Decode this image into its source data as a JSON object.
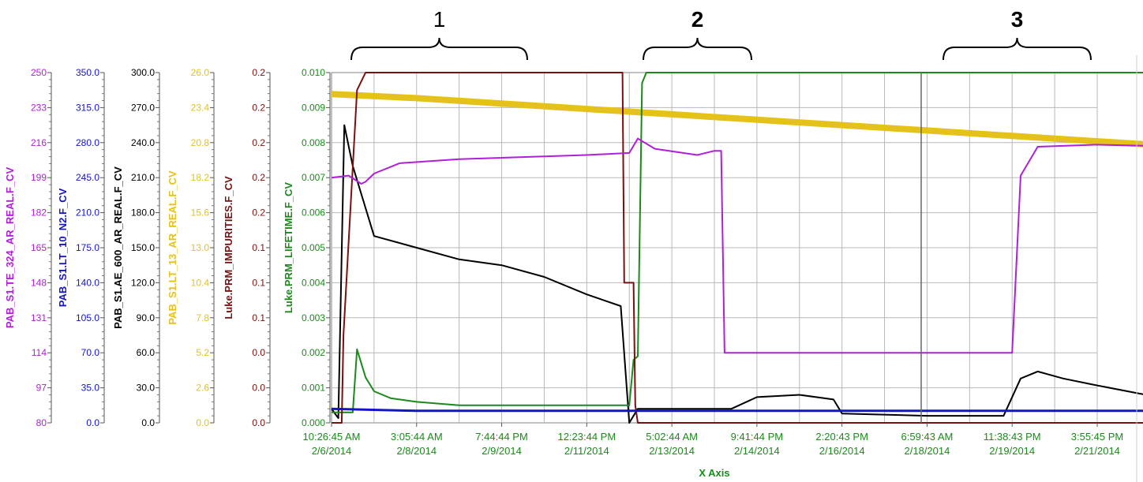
{
  "colors": {
    "magenta": "#b01fd8",
    "blue": "#1414c8",
    "black": "#000000",
    "gold": "#e5c21a",
    "maroon": "#7a1010",
    "green": "#1a8a1a",
    "grid": "#b8b8b8"
  },
  "annotations": [
    {
      "label": "1",
      "bold": false
    },
    {
      "label": "2",
      "bold": true
    },
    {
      "label": "3",
      "bold": true
    }
  ],
  "chart_data": {
    "type": "line",
    "title": "",
    "xlabel": "X Axis",
    "grid": true,
    "x_ticks": [
      {
        "time": "10:26:45 AM",
        "date": "2/6/2014"
      },
      {
        "time": "3:05:44 AM",
        "date": "2/8/2014"
      },
      {
        "time": "7:44:44 PM",
        "date": "2/9/2014"
      },
      {
        "time": "12:23:44 PM",
        "date": "2/11/2014"
      },
      {
        "time": "5:02:44 AM",
        "date": "2/13/2014"
      },
      {
        "time": "9:41:44 PM",
        "date": "2/14/2014"
      },
      {
        "time": "2:20:43 PM",
        "date": "2/16/2014"
      },
      {
        "time": "6:59:43 AM",
        "date": "2/18/2014"
      },
      {
        "time": "11:38:43 PM",
        "date": "2/19/2014"
      },
      {
        "time": "3:55:45 PM",
        "date": "2/21/2014"
      }
    ],
    "axes": [
      {
        "label": "PAB_S1.TE_324_AR_REAL.F_CV",
        "color": "#b01fd8",
        "ticks": [
          "250",
          "233",
          "216",
          "199",
          "182",
          "165",
          "148",
          "131",
          "114",
          "97",
          "80"
        ],
        "ylim": [
          80,
          250
        ]
      },
      {
        "label": "PAB_S1.LT_10_N2.F_CV",
        "color": "#1414c8",
        "ticks": [
          "350.0",
          "315.0",
          "280.0",
          "245.0",
          "210.0",
          "175.0",
          "140.0",
          "105.0",
          "70.0",
          "35.0",
          "0.0"
        ],
        "ylim": [
          0,
          350
        ]
      },
      {
        "label": "PAB_S1.AE_600_AR_REAL.F_CV",
        "color": "#000000",
        "ticks": [
          "300.0",
          "270.0",
          "240.0",
          "210.0",
          "180.0",
          "150.0",
          "120.0",
          "90.0",
          "60.0",
          "30.0",
          "0.0"
        ],
        "ylim": [
          0,
          300
        ]
      },
      {
        "label": "PAB_S1.LT_13_AR_REAL.F_CV",
        "color": "#e5c21a",
        "ticks": [
          "26.0",
          "23.4",
          "20.8",
          "18.2",
          "15.6",
          "13.0",
          "10.4",
          "7.8",
          "5.2",
          "2.6",
          "0.0"
        ],
        "ylim": [
          0,
          26
        ]
      },
      {
        "label": "Luke.PRM_IMPURITIES.F_CV",
        "color": "#7a1010",
        "ticks": [
          "0.2",
          "0.2",
          "0.2",
          "0.2",
          "0.2",
          "0.1",
          "0.1",
          "0.1",
          "0.0",
          "0.0",
          "0.0"
        ],
        "ylim": [
          0,
          0.2
        ]
      },
      {
        "label": "Luke.PRM_LIFETIME.F_CV",
        "color": "#1a8a1a",
        "ticks": [
          "0.010",
          "0.009",
          "0.008",
          "0.007",
          "0.006",
          "0.005",
          "0.004",
          "0.003",
          "0.002",
          "0.001",
          "0.000"
        ],
        "ylim": [
          0,
          0.01
        ]
      }
    ],
    "series": [
      {
        "axis": 0,
        "color": "#b01fd8",
        "x": [
          0,
          0.2,
          0.35,
          0.4,
          0.5,
          0.8,
          1.5,
          3.0,
          3.5,
          3.6,
          3.8,
          4.3,
          4.5,
          4.58,
          4.62,
          7.5,
          8.0,
          8.1,
          8.3,
          9.0,
          10.0
        ],
        "y": [
          199,
          200,
          196,
          197,
          201,
          206,
          208,
          210,
          211,
          218,
          213,
          210,
          212,
          212,
          114,
          114,
          114,
          200,
          214,
          215,
          214
        ]
      },
      {
        "axis": 1,
        "color": "#1414c8",
        "x": [
          0,
          1,
          2,
          3,
          4,
          5,
          6,
          7,
          8,
          9,
          10
        ],
        "y": [
          14,
          12,
          12,
          12,
          12,
          12,
          12,
          12,
          12,
          12,
          12
        ]
      },
      {
        "axis": 2,
        "color": "#000000",
        "x": [
          0,
          0.08,
          0.15,
          0.25,
          0.5,
          1.0,
          1.5,
          2.0,
          2.5,
          3.0,
          3.4,
          3.5,
          3.6,
          4.7,
          5.0,
          5.5,
          5.9,
          6.0,
          7.0,
          7.9,
          8.1,
          8.3,
          8.6,
          9.0,
          9.5,
          10.0
        ],
        "y": [
          12,
          4,
          255,
          220,
          160,
          150,
          140,
          135,
          125,
          110,
          100,
          0,
          12,
          12,
          22,
          24,
          20,
          8,
          6,
          6,
          38,
          44,
          38,
          32,
          25,
          18
        ]
      },
      {
        "axis": 3,
        "color": "#e5c21a",
        "x": [
          0,
          1,
          2,
          3,
          4,
          5,
          6,
          7,
          8,
          9,
          10
        ],
        "y": [
          24.4,
          24.1,
          23.7,
          23.3,
          22.9,
          22.5,
          22.1,
          21.7,
          21.3,
          20.9,
          20.5
        ]
      },
      {
        "axis": 4,
        "color": "#7a1010",
        "x": [
          0,
          0.12,
          0.14,
          0.3,
          0.4,
          3.42,
          3.44,
          3.55,
          3.57,
          3.6,
          10.0
        ],
        "y": [
          0,
          0,
          0.05,
          0.19,
          0.2,
          0.2,
          0.08,
          0.08,
          0.01,
          0.0,
          0.0
        ]
      },
      {
        "axis": 5,
        "color": "#1a8a1a",
        "x": [
          0,
          0.25,
          0.3,
          0.4,
          0.5,
          0.7,
          1.0,
          1.5,
          2.0,
          2.5,
          3.0,
          3.5,
          3.55,
          3.6,
          3.65,
          3.7,
          10.0
        ],
        "y": [
          0.0003,
          0.0003,
          0.0021,
          0.0013,
          0.0009,
          0.0007,
          0.0006,
          0.0005,
          0.0005,
          0.0005,
          0.0005,
          0.0005,
          0.0018,
          0.0019,
          0.0097,
          0.01,
          0.01
        ]
      }
    ]
  }
}
